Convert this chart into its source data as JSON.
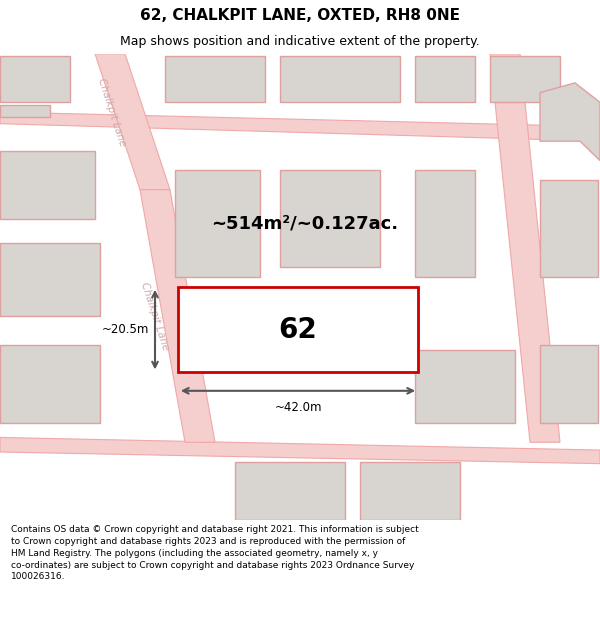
{
  "title": "62, CHALKPIT LANE, OXTED, RH8 0NE",
  "subtitle": "Map shows position and indicative extent of the property.",
  "footer": "Contains OS data © Crown copyright and database right 2021. This information is subject to Crown copyright and database rights 2023 and is reproduced with the permission of HM Land Registry. The polygons (including the associated geometry, namely x, y co-ordinates) are subject to Crown copyright and database rights 2023 Ordnance Survey 100026316.",
  "area_text": "~514m²/~0.127ac.",
  "width_label": "~42.0m",
  "height_label": "~20.5m",
  "property_number": "62",
  "map_bg": "#f2eeea",
  "road_fill": "#f5cece",
  "road_edge": "#f0a8a8",
  "building_fill": "#d8d4cf",
  "building_edge": "#e0a0a0",
  "highlight_color": "#cc0000",
  "text_road_color": "#d0aaaa",
  "dim_color": "#555555",
  "footer_bg": "#ffffff",
  "title_bg": "#ffffff",
  "title_fontsize": 11,
  "subtitle_fontsize": 9,
  "footer_fontsize": 6.5
}
